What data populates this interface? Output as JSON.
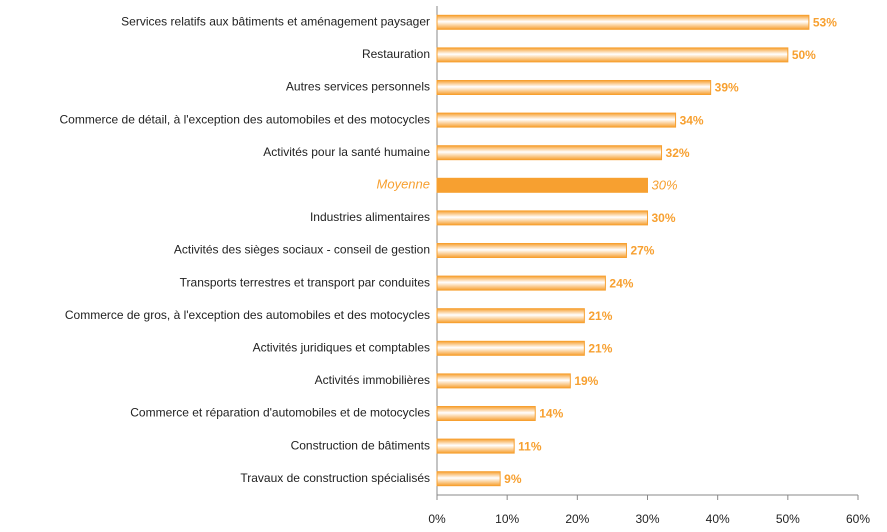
{
  "chart_data": {
    "type": "barh",
    "categories": [
      "Services relatifs aux bâtiments et aménagement paysager",
      "Restauration",
      "Autres services personnels",
      "Commerce de détail, à l'exception des automobiles et des motocycles",
      "Activités pour la santé humaine",
      "Moyenne",
      "Industries alimentaires",
      "Activités des sièges sociaux -  conseil de gestion",
      "Transports terrestres et transport par conduites",
      "Commerce de gros, à l'exception des automobiles et des motocycles",
      "Activités juridiques et comptables",
      "Activités immobilières",
      "Commerce et réparation d'automobiles et de motocycles",
      "Construction de bâtiments",
      "Travaux de construction spécialisés"
    ],
    "values": [
      53,
      50,
      39,
      34,
      32,
      30,
      30,
      27,
      24,
      21,
      21,
      19,
      14,
      11,
      9
    ],
    "value_labels": [
      "53%",
      "50%",
      "39%",
      "34%",
      "32%",
      "30%",
      "30%",
      "27%",
      "24%",
      "21%",
      "21%",
      "19%",
      "14%",
      "11%",
      "9%"
    ],
    "bar_styles": [
      "gradient",
      "gradient",
      "gradient",
      "gradient",
      "gradient",
      "solid",
      "gradient",
      "gradient",
      "gradient",
      "gradient",
      "gradient",
      "gradient",
      "gradient",
      "gradient",
      "gradient"
    ],
    "color": "#f7a030",
    "xlim": [
      0,
      60
    ],
    "xticks": [
      {
        "value": 0,
        "label": "0%"
      },
      {
        "value": 10,
        "label": "10%"
      },
      {
        "value": 20,
        "label": "20%"
      },
      {
        "value": 30,
        "label": "30%"
      },
      {
        "value": 40,
        "label": "40%"
      },
      {
        "value": 50,
        "label": "50%"
      },
      {
        "value": 60,
        "label": "60%"
      }
    ],
    "grid": false
  }
}
